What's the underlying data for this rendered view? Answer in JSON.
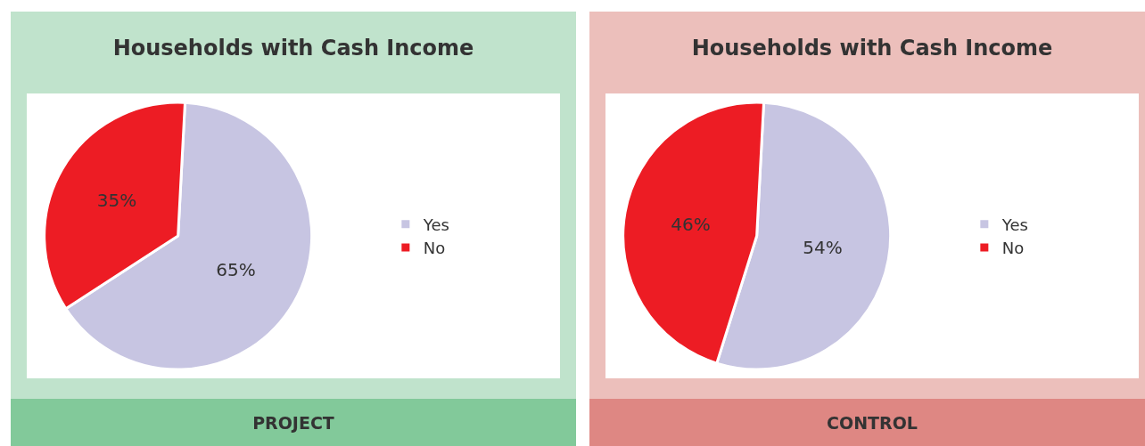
{
  "chart_data": [
    {
      "type": "pie",
      "title": "Households with Cash Income",
      "categories": [
        "Yes",
        "No"
      ],
      "values": [
        65,
        35
      ],
      "value_labels": [
        "65%",
        "35%"
      ],
      "colors": [
        "#c7c5e2",
        "#ed1c24"
      ],
      "legend": "right",
      "annotations": [
        "PROJECT"
      ]
    },
    {
      "type": "pie",
      "title": "Households with Cash Income",
      "categories": [
        "Yes",
        "No"
      ],
      "values": [
        54,
        46
      ],
      "value_labels": [
        "54%",
        "46%"
      ],
      "colors": [
        "#c7c5e2",
        "#ed1c24"
      ],
      "legend": "right",
      "annotations": [
        "CONTROL"
      ]
    }
  ]
}
